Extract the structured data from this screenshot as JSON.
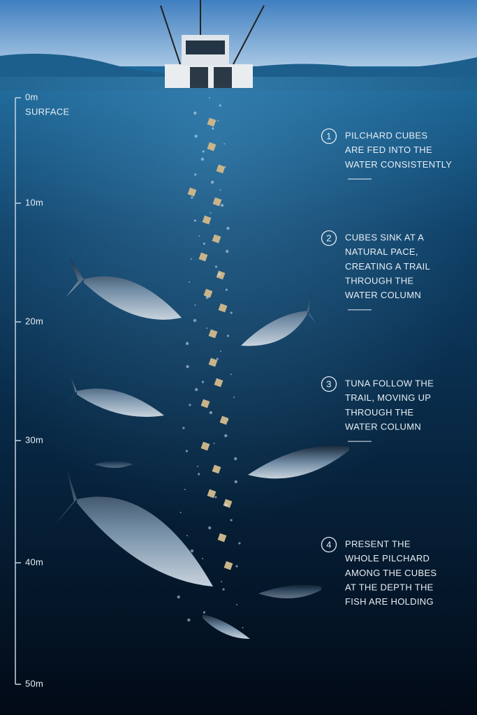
{
  "scale": {
    "marks": [
      {
        "label": "0m",
        "note": "SURFACE"
      },
      {
        "label": "10m"
      },
      {
        "label": "20m"
      },
      {
        "label": "30m"
      },
      {
        "label": "40m"
      },
      {
        "label": "50m"
      }
    ]
  },
  "steps": [
    {
      "number": "1",
      "lines": [
        "PILCHARD CUBES",
        "ARE FED INTO THE",
        "WATER CONSISTENTLY"
      ]
    },
    {
      "number": "2",
      "lines": [
        "CUBES SINK AT A",
        "NATURAL PACE,",
        "CREATING A TRAIL",
        "THROUGH THE",
        "WATER COLUMN"
      ]
    },
    {
      "number": "3",
      "lines": [
        "TUNA FOLLOW THE",
        "TRAIL, MOVING UP",
        "THROUGH THE",
        "WATER COLUMN"
      ]
    },
    {
      "number": "4",
      "lines": [
        "PRESENT THE",
        "WHOLE PILCHARD",
        "AMONG THE CUBES",
        "AT THE DEPTH THE",
        "FISH ARE HOLDING"
      ]
    }
  ]
}
